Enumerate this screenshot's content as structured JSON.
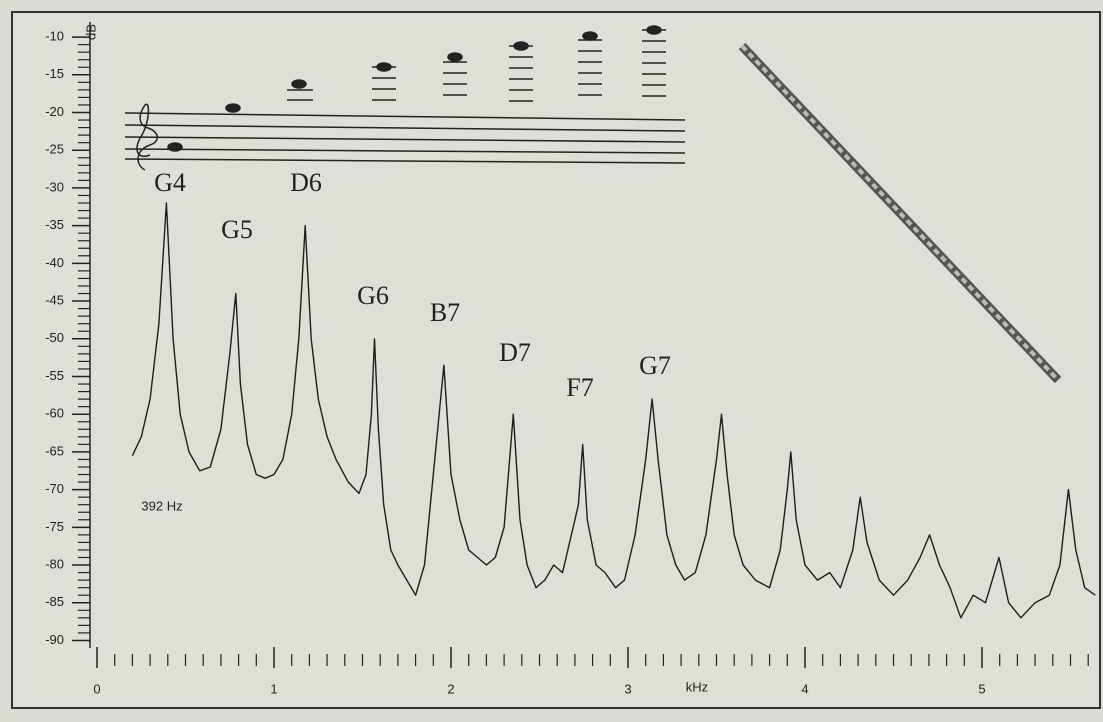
{
  "chart_data": {
    "type": "line",
    "y_label": "dB",
    "x_label": "kHz",
    "xlim": [
      0,
      5.65
    ],
    "ylim": [
      -91,
      -8
    ],
    "xticks": [
      0,
      1,
      2,
      3,
      4,
      5
    ],
    "yticks": [
      -10,
      -15,
      -20,
      -25,
      -30,
      -35,
      -40,
      -45,
      -50,
      -55,
      -60,
      -65,
      -70,
      -75,
      -80,
      -85,
      -90
    ],
    "color": "#1e1e1e",
    "annotations": [
      "G4",
      "G5",
      "D6",
      "G6",
      "B7",
      "D7",
      "F7",
      "G7",
      "392 Hz"
    ],
    "x": [
      0.2,
      0.25,
      0.3,
      0.35,
      0.392,
      0.43,
      0.47,
      0.52,
      0.58,
      0.64,
      0.7,
      0.75,
      0.784,
      0.81,
      0.85,
      0.9,
      0.95,
      1.0,
      1.05,
      1.1,
      1.14,
      1.176,
      1.21,
      1.25,
      1.3,
      1.35,
      1.42,
      1.48,
      1.52,
      1.55,
      1.568,
      1.59,
      1.62,
      1.66,
      1.7,
      1.75,
      1.8,
      1.85,
      1.9,
      1.96,
      2.0,
      2.05,
      2.1,
      2.15,
      2.2,
      2.25,
      2.3,
      2.352,
      2.39,
      2.43,
      2.48,
      2.53,
      2.58,
      2.63,
      2.68,
      2.72,
      2.744,
      2.77,
      2.82,
      2.87,
      2.93,
      2.98,
      3.04,
      3.1,
      3.136,
      3.17,
      3.22,
      3.27,
      3.32,
      3.38,
      3.44,
      3.5,
      3.528,
      3.56,
      3.6,
      3.65,
      3.72,
      3.8,
      3.86,
      3.9,
      3.92,
      3.95,
      4.0,
      4.07,
      4.14,
      4.2,
      4.27,
      4.312,
      4.35,
      4.42,
      4.5,
      4.58,
      4.65,
      4.704,
      4.76,
      4.82,
      4.88,
      4.95,
      5.02,
      5.096,
      5.15,
      5.22,
      5.3,
      5.38,
      5.44,
      5.488,
      5.53,
      5.58,
      5.64
    ],
    "values": [
      -65.5,
      -63,
      -58,
      -48,
      -32,
      -50,
      -60,
      -65,
      -67.5,
      -67,
      -62,
      -52,
      -44,
      -56,
      -64,
      -68,
      -68.5,
      -68,
      -66,
      -60,
      -50,
      -35,
      -50,
      -58,
      -63,
      -66,
      -69,
      -70.5,
      -68,
      -60,
      -50,
      -62,
      -72,
      -78,
      -80,
      -82,
      -84,
      -80,
      -68,
      -53.5,
      -68,
      -74,
      -78,
      -79,
      -80,
      -79,
      -75,
      -60,
      -74,
      -80,
      -83,
      -82,
      -80,
      -81,
      -76,
      -72,
      -64,
      -74,
      -80,
      -81,
      -83,
      -82,
      -76,
      -66,
      -58,
      -66,
      -76,
      -80,
      -82,
      -81,
      -76,
      -66,
      -60,
      -68,
      -76,
      -80,
      -82,
      -83,
      -78,
      -70,
      -65,
      -74,
      -80,
      -82,
      -81,
      -83,
      -78,
      -71,
      -77,
      -82,
      -84,
      -82,
      -79,
      -76,
      -80,
      -83,
      -87,
      -84,
      -85,
      -79,
      -85,
      -87,
      -85,
      -84,
      -80,
      -70,
      -78,
      -83,
      -84
    ]
  }
}
